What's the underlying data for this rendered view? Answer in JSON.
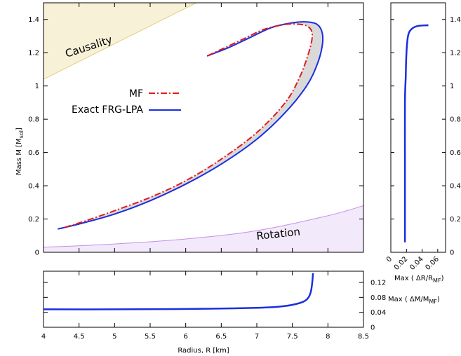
{
  "chart_data": [
    {
      "id": "main",
      "type": "line",
      "xlim": [
        4,
        8.5
      ],
      "ylim": [
        0,
        1.5
      ],
      "ylabel": "Mass M [M",
      "ylabel_sub": "sol",
      "ylabel_end": "]",
      "yticks": [
        "0",
        "0.2",
        "0.4",
        "0.6",
        "0.8",
        "1",
        "1.2",
        "1.4"
      ],
      "yticks_right": [
        "0",
        "0.2",
        "0.4",
        "0.6",
        "0.8",
        "1",
        "1.2",
        "1.4"
      ],
      "legend_position": "upper-left",
      "series": [
        {
          "name": "MF",
          "style": "dash-dot",
          "color": "#e31a1c",
          "points": [
            [
              4.3,
              0.15
            ],
            [
              4.6,
              0.19
            ],
            [
              5.0,
              0.25
            ],
            [
              5.5,
              0.33
            ],
            [
              6.0,
              0.43
            ],
            [
              6.5,
              0.56
            ],
            [
              7.0,
              0.72
            ],
            [
              7.4,
              0.9
            ],
            [
              7.6,
              1.05
            ],
            [
              7.73,
              1.2
            ],
            [
              7.78,
              1.3
            ],
            [
              7.74,
              1.35
            ],
            [
              7.62,
              1.37
            ],
            [
              7.4,
              1.37
            ],
            [
              7.1,
              1.34
            ],
            [
              6.8,
              1.28
            ],
            [
              6.5,
              1.22
            ],
            [
              6.3,
              1.18
            ]
          ]
        },
        {
          "name": "Exact FRG-LPA",
          "style": "solid",
          "color": "#1a2ee0",
          "points": [
            [
              4.2,
              0.14
            ],
            [
              4.5,
              0.17
            ],
            [
              5.0,
              0.23
            ],
            [
              5.5,
              0.31
            ],
            [
              6.0,
              0.41
            ],
            [
              6.5,
              0.53
            ],
            [
              7.0,
              0.68
            ],
            [
              7.4,
              0.84
            ],
            [
              7.7,
              1.0
            ],
            [
              7.85,
              1.13
            ],
            [
              7.92,
              1.24
            ],
            [
              7.92,
              1.32
            ],
            [
              7.85,
              1.37
            ],
            [
              7.7,
              1.385
            ],
            [
              7.5,
              1.38
            ],
            [
              7.2,
              1.35
            ],
            [
              6.9,
              1.29
            ],
            [
              6.6,
              1.23
            ],
            [
              6.3,
              1.18
            ]
          ]
        }
      ],
      "regions": [
        {
          "name": "Causality",
          "color": "#f7f1d8",
          "edge": "#e0d080",
          "boundary": [
            [
              4.0,
              1.04
            ],
            [
              6.15,
              1.5
            ]
          ]
        },
        {
          "name": "Rotation",
          "color": "#f2e9fb",
          "edge": "#c58fe6",
          "boundary": [
            [
              4.0,
              0.03
            ],
            [
              5.0,
              0.05
            ],
            [
              6.0,
              0.08
            ],
            [
              7.0,
              0.13
            ],
            [
              8.0,
              0.22
            ],
            [
              8.5,
              0.28
            ]
          ]
        }
      ]
    },
    {
      "id": "right",
      "type": "line",
      "xlim": [
        0,
        0.07
      ],
      "ylim": [
        0,
        1.5
      ],
      "xticks": [
        "0",
        "0.02",
        "0.04",
        "0.06"
      ],
      "xlabel": "Max ( ΔR/R",
      "xlabel_sub": "MF",
      "xlabel_end": ")",
      "series": [
        {
          "name": "",
          "color": "#1a2ee0",
          "points": [
            [
              0.018,
              0.06
            ],
            [
              0.018,
              0.3
            ],
            [
              0.018,
              0.6
            ],
            [
              0.018,
              0.9
            ],
            [
              0.019,
              1.05
            ],
            [
              0.02,
              1.2
            ],
            [
              0.022,
              1.3
            ],
            [
              0.026,
              1.34
            ],
            [
              0.034,
              1.36
            ],
            [
              0.048,
              1.365
            ]
          ]
        }
      ]
    },
    {
      "id": "bottom",
      "type": "line",
      "xlim": [
        4,
        8.5
      ],
      "ylim": [
        0,
        0.15
      ],
      "xticks": [
        "4",
        "4.5",
        "5",
        "5.5",
        "6",
        "6.5",
        "7",
        "7.5",
        "8",
        "8.5"
      ],
      "yticks_right": [
        "0",
        "0.04",
        "0.08",
        "0.12"
      ],
      "xlabel": "Radius, R [km]",
      "ylabel_right": "Max ( ΔM/M",
      "ylabel_right_sub": "MF",
      "ylabel_right_end": ")",
      "series": [
        {
          "name": "",
          "color": "#1a2ee0",
          "points": [
            [
              4.0,
              0.048
            ],
            [
              5.0,
              0.048
            ],
            [
              6.0,
              0.049
            ],
            [
              6.5,
              0.05
            ],
            [
              7.0,
              0.052
            ],
            [
              7.3,
              0.055
            ],
            [
              7.5,
              0.06
            ],
            [
              7.65,
              0.068
            ],
            [
              7.72,
              0.078
            ],
            [
              7.76,
              0.095
            ],
            [
              7.78,
              0.12
            ],
            [
              7.79,
              0.145
            ]
          ]
        }
      ]
    }
  ]
}
